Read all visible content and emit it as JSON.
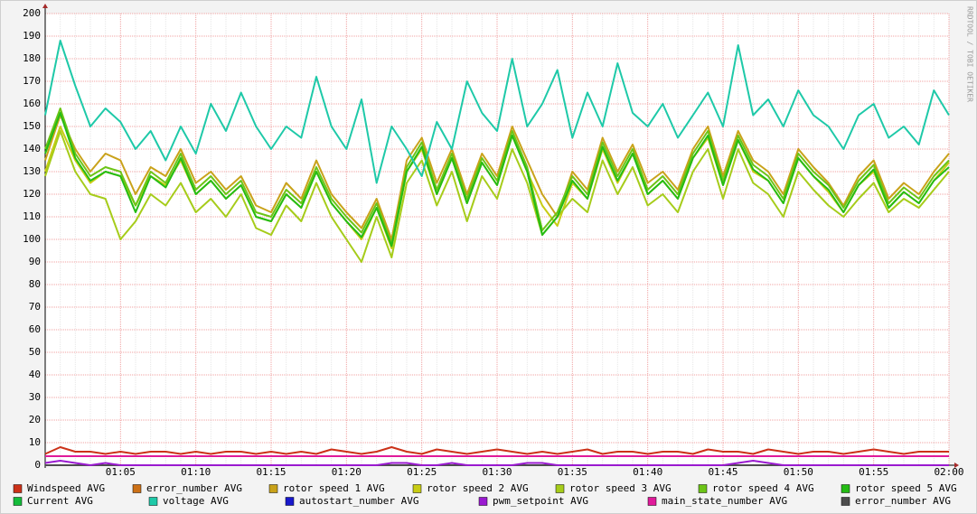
{
  "chart_data": {
    "type": "line",
    "watermark": "RRDTOOL / TOBI OETIKER",
    "categories": [
      null,
      null,
      null,
      null,
      null,
      "01:05",
      null,
      null,
      null,
      null,
      "01:10",
      null,
      null,
      null,
      null,
      "01:15",
      null,
      null,
      null,
      null,
      "01:20",
      null,
      null,
      null,
      null,
      "01:25",
      null,
      null,
      null,
      null,
      "01:30",
      null,
      null,
      null,
      null,
      "01:35",
      null,
      null,
      null,
      null,
      "01:40",
      null,
      null,
      null,
      null,
      "01:45",
      null,
      null,
      null,
      null,
      "01:50",
      null,
      null,
      null,
      null,
      "01:55",
      null,
      null,
      null,
      null,
      "02:00"
    ],
    "ylim": [
      0,
      200
    ],
    "yticks": [
      0,
      10,
      20,
      30,
      40,
      50,
      60,
      70,
      80,
      90,
      100,
      110,
      120,
      130,
      140,
      150,
      160,
      170,
      180,
      190,
      200
    ],
    "grid": true,
    "series": [
      {
        "name": "Windspeed AVG",
        "color": "#cc3118",
        "values": [
          5,
          8,
          6,
          6,
          5,
          6,
          5,
          6,
          6,
          5,
          6,
          5,
          6,
          6,
          5,
          6,
          5,
          6,
          5,
          7,
          6,
          5,
          6,
          8,
          6,
          5,
          7,
          6,
          5,
          6,
          7,
          6,
          5,
          6,
          5,
          6,
          7,
          5,
          6,
          6,
          5,
          6,
          6,
          5,
          7,
          6,
          6,
          5,
          7,
          6,
          5,
          6,
          6,
          5,
          6,
          7,
          6,
          5,
          6,
          6,
          6
        ]
      },
      {
        "name": "error_number AVG",
        "color": "#cc7016",
        "values": [
          0,
          0,
          0,
          0,
          0,
          0,
          0,
          0,
          0,
          0,
          0,
          0,
          0,
          0,
          0,
          0,
          0,
          0,
          0,
          0,
          0,
          0,
          0,
          0,
          0,
          0,
          0,
          0,
          0,
          0,
          0,
          0,
          0,
          0,
          0,
          0,
          0,
          0,
          0,
          0,
          0,
          0,
          0,
          0,
          0,
          0,
          0,
          0,
          0,
          0,
          0,
          0,
          0,
          0,
          0,
          0,
          0,
          0,
          0,
          0,
          0
        ]
      },
      {
        "name": "rotor speed 1 AVG",
        "color": "#c9a21a",
        "values": [
          135,
          155,
          140,
          130,
          138,
          135,
          120,
          132,
          128,
          140,
          125,
          130,
          122,
          128,
          115,
          112,
          125,
          118,
          135,
          120,
          112,
          105,
          118,
          100,
          135,
          145,
          125,
          140,
          120,
          138,
          128,
          150,
          135,
          120,
          110,
          130,
          122,
          145,
          130,
          142,
          125,
          130,
          122,
          140,
          150,
          128,
          148,
          135,
          130,
          120,
          140,
          132,
          125,
          115,
          128,
          135,
          118,
          125,
          120,
          130,
          138
        ]
      },
      {
        "name": "rotor speed 2 AVG",
        "color": "#c8cc14",
        "values": [
          130,
          150,
          135,
          125,
          130,
          128,
          115,
          128,
          124,
          135,
          120,
          126,
          118,
          124,
          110,
          108,
          120,
          114,
          130,
          116,
          108,
          100,
          114,
          96,
          130,
          140,
          120,
          136,
          116,
          134,
          124,
          146,
          130,
          115,
          106,
          125,
          118,
          140,
          125,
          138,
          120,
          126,
          118,
          136,
          145,
          124,
          144,
          130,
          126,
          116,
          136,
          128,
          121,
          112,
          124,
          130,
          114,
          121,
          116,
          126,
          134
        ]
      },
      {
        "name": "rotor speed 3 AVG",
        "color": "#a6cc1a",
        "values": [
          128,
          148,
          130,
          120,
          118,
          100,
          108,
          120,
          115,
          125,
          112,
          118,
          110,
          120,
          105,
          102,
          115,
          108,
          125,
          110,
          100,
          90,
          110,
          92,
          125,
          135,
          115,
          130,
          108,
          128,
          118,
          140,
          125,
          102,
          110,
          118,
          112,
          135,
          120,
          132,
          115,
          120,
          112,
          130,
          140,
          118,
          140,
          125,
          120,
          110,
          130,
          122,
          115,
          110,
          118,
          125,
          112,
          118,
          114,
          122,
          130
        ]
      },
      {
        "name": "rotor speed 4 AVG",
        "color": "#6cc416",
        "values": [
          140,
          158,
          138,
          128,
          132,
          130,
          115,
          130,
          125,
          138,
          122,
          128,
          120,
          126,
          112,
          110,
          122,
          116,
          132,
          118,
          110,
          103,
          116,
          98,
          132,
          143,
          122,
          138,
          118,
          136,
          126,
          148,
          132,
          104,
          112,
          128,
          120,
          143,
          128,
          140,
          122,
          128,
          120,
          138,
          148,
          126,
          146,
          133,
          128,
          118,
          138,
          130,
          124,
          114,
          126,
          133,
          116,
          123,
          118,
          128,
          135
        ]
      },
      {
        "name": "rotor speed 5 AVG",
        "color": "#24bc14",
        "values": [
          138,
          156,
          136,
          126,
          130,
          128,
          112,
          128,
          123,
          136,
          120,
          126,
          118,
          124,
          110,
          108,
          120,
          114,
          130,
          116,
          108,
          101,
          114,
          97,
          130,
          141,
          120,
          136,
          116,
          134,
          124,
          146,
          130,
          102,
          110,
          126,
          118,
          141,
          126,
          138,
          120,
          126,
          118,
          136,
          146,
          124,
          144,
          131,
          126,
          116,
          136,
          128,
          122,
          112,
          124,
          131,
          114,
          121,
          116,
          126,
          132
        ]
      },
      {
        "name": "Current AVG",
        "color": "#14bc3a",
        "values": [
          0,
          0,
          0,
          0,
          0,
          0,
          0,
          0,
          0,
          0,
          0,
          0,
          0,
          0,
          0,
          0,
          0,
          0,
          0,
          0,
          0,
          0,
          0,
          0,
          0,
          0,
          0,
          0,
          0,
          0,
          0,
          0,
          0,
          0,
          0,
          0,
          0,
          0,
          0,
          0,
          0,
          0,
          0,
          0,
          0,
          0,
          0,
          0,
          0,
          0,
          0,
          0,
          0,
          0,
          0,
          0,
          0,
          0,
          0,
          0,
          0
        ]
      },
      {
        "name": "voltage AVG",
        "color": "#1ec9a8",
        "values": [
          155,
          188,
          168,
          150,
          158,
          152,
          140,
          148,
          135,
          150,
          138,
          160,
          148,
          165,
          150,
          140,
          150,
          145,
          172,
          150,
          140,
          162,
          125,
          150,
          140,
          128,
          152,
          140,
          170,
          156,
          148,
          180,
          150,
          160,
          175,
          145,
          165,
          150,
          178,
          156,
          150,
          160,
          145,
          155,
          165,
          150,
          186,
          155,
          162,
          150,
          166,
          155,
          150,
          140,
          155,
          160,
          145,
          150,
          142,
          166,
          155
        ]
      },
      {
        "name": "autostart_number AVG",
        "color": "#1818cc",
        "values": [
          0,
          0,
          0,
          0,
          0,
          0,
          0,
          0,
          0,
          0,
          0,
          0,
          0,
          0,
          0,
          0,
          0,
          0,
          0,
          0,
          0,
          0,
          0,
          0,
          0,
          0,
          0,
          0,
          0,
          0,
          0,
          0,
          0,
          0,
          0,
          0,
          0,
          0,
          0,
          0,
          0,
          0,
          0,
          0,
          0,
          0,
          0,
          0,
          0,
          0,
          0,
          0,
          0,
          0,
          0,
          0,
          0,
          0,
          0,
          0,
          0
        ]
      },
      {
        "name": "pwm_setpoint AVG",
        "color": "#9a1ad0",
        "values": [
          1,
          2,
          1,
          0,
          1,
          0,
          0,
          0,
          0,
          0,
          0,
          0,
          0,
          0,
          0,
          0,
          0,
          0,
          0,
          0,
          0,
          0,
          0,
          1,
          1,
          0,
          0,
          1,
          0,
          0,
          0,
          0,
          1,
          1,
          0,
          0,
          0,
          0,
          0,
          0,
          0,
          0,
          0,
          0,
          0,
          0,
          1,
          2,
          1,
          0,
          0,
          0,
          0,
          0,
          0,
          0,
          0,
          0,
          0,
          0,
          0
        ]
      },
      {
        "name": "main_state_number AVG",
        "color": "#e01a9a",
        "values": [
          4,
          4,
          4,
          4,
          4,
          4,
          4,
          4,
          4,
          4,
          4,
          4,
          4,
          4,
          4,
          4,
          4,
          4,
          4,
          4,
          4,
          4,
          4,
          4,
          4,
          4,
          4,
          4,
          4,
          4,
          4,
          4,
          4,
          4,
          4,
          4,
          4,
          4,
          4,
          4,
          4,
          4,
          4,
          4,
          4,
          4,
          4,
          4,
          4,
          4,
          4,
          4,
          4,
          4,
          4,
          4,
          4,
          4,
          4,
          4,
          4
        ]
      },
      {
        "name": "error_number AVG",
        "color": "#4d4d4d",
        "values": [
          0,
          0,
          0,
          0,
          0,
          0,
          0,
          0,
          0,
          0,
          0,
          0,
          0,
          0,
          0,
          0,
          0,
          0,
          0,
          0,
          0,
          0,
          0,
          0,
          0,
          0,
          0,
          0,
          0,
          0,
          0,
          0,
          0,
          0,
          0,
          0,
          0,
          0,
          0,
          0,
          0,
          0,
          0,
          0,
          0,
          0,
          0,
          0,
          0,
          0,
          0,
          0,
          0,
          0,
          0,
          0,
          0,
          0,
          0,
          0,
          0
        ]
      }
    ]
  }
}
